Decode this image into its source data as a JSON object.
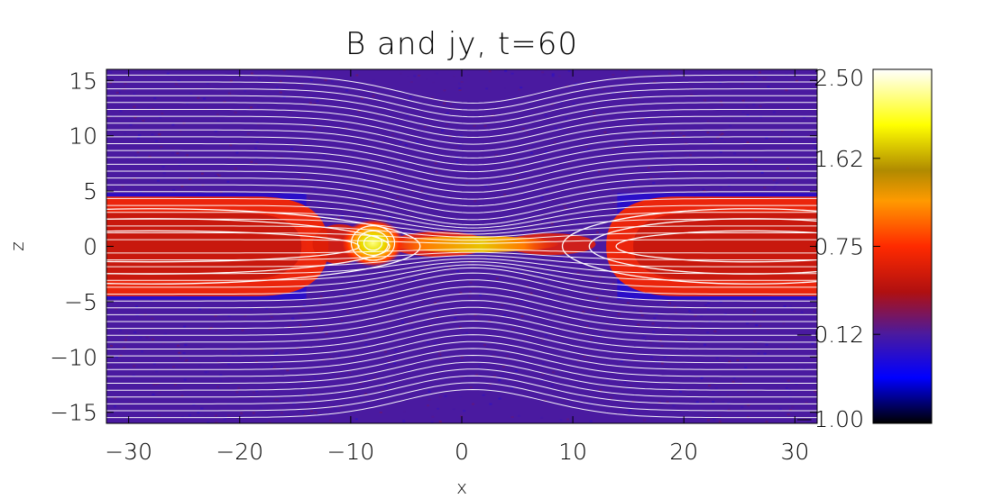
{
  "chart_data": {
    "type": "heatmap",
    "title": "B and jy, t=60",
    "xlabel": "x",
    "ylabel": "z",
    "xlim": [
      -32,
      32
    ],
    "ylim": [
      -16,
      16
    ],
    "x_ticks": [
      -30,
      -20,
      -10,
      0,
      10,
      20,
      30
    ],
    "x_tick_labels": [
      "−30",
      "−20",
      "−10",
      "0",
      "10",
      "20",
      "30"
    ],
    "y_ticks": [
      15,
      10,
      5,
      0,
      -5,
      -10,
      -15
    ],
    "y_tick_labels": [
      "15",
      "10",
      "5",
      "0",
      "−5",
      "−10",
      "−15"
    ],
    "colorbar": {
      "range": [
        -1.0,
        2.5
      ],
      "ticks": [
        2.5,
        1.62,
        0.75,
        -0.12,
        -1.0
      ],
      "tick_labels": [
        "2.50",
        "1.62",
        "0.75",
        "−0.12",
        "−1.00"
      ],
      "colormap_stops": [
        {
          "value": -1.0,
          "color": "#000000"
        },
        {
          "value": -0.55,
          "color": "#0000ff"
        },
        {
          "value": -0.12,
          "color": "#4a1aa0"
        },
        {
          "value": 0.3,
          "color": "#b01010"
        },
        {
          "value": 0.75,
          "color": "#ff2a00"
        },
        {
          "value": 1.2,
          "color": "#ff9a00"
        },
        {
          "value": 1.5,
          "color": "#b08a00"
        },
        {
          "value": 1.95,
          "color": "#ffff00"
        },
        {
          "value": 2.5,
          "color": "#ffffff"
        }
      ]
    },
    "background_value": -0.12,
    "current_sheet_features": [
      {
        "kind": "plasmoid-core",
        "x": -8,
        "z": 0.3,
        "peak_value": 2.2
      },
      {
        "kind": "x-line-sheet",
        "x_range": [
          -4,
          6
        ],
        "z": 0.2,
        "peak_value": 1.4
      },
      {
        "kind": "magnetic-island-left",
        "x_range": [
          -32,
          -12
        ],
        "z_halfwidth": 4.5,
        "peak_value": 0.9
      },
      {
        "kind": "magnetic-island-right",
        "x_range": [
          13,
          32
        ],
        "z_halfwidth": 4.5,
        "peak_value": 0.9
      }
    ],
    "field_lines": {
      "color": "#ffffff",
      "style": "B field contours",
      "o_points_x": [
        -28,
        -8,
        26
      ],
      "x_points_x": [
        -12,
        6
      ]
    }
  }
}
